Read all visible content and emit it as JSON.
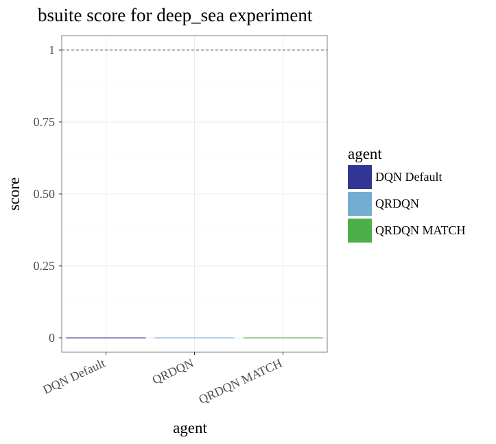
{
  "chart_data": {
    "type": "bar",
    "title": "bsuite score for deep_sea experiment",
    "xlabel": "agent",
    "ylabel": "score",
    "categories": [
      "DQN Default",
      "QRDQN",
      "QRDQN MATCH"
    ],
    "values": [
      0,
      0,
      0
    ],
    "ylim": [
      -0.05,
      1.05
    ],
    "yticks": [
      0,
      0.25,
      0.5,
      0.75,
      1
    ],
    "ytick_labels": [
      "0",
      "0.25",
      "0.50",
      "0.75",
      "1"
    ],
    "reference_line": 1,
    "grid": true,
    "legend": {
      "title": "agent",
      "placement": "right",
      "entries": [
        "DQN Default",
        "QRDQN",
        "QRDQN MATCH"
      ]
    },
    "colors": [
      "#313695",
      "#74add1",
      "#4daf4a"
    ]
  }
}
